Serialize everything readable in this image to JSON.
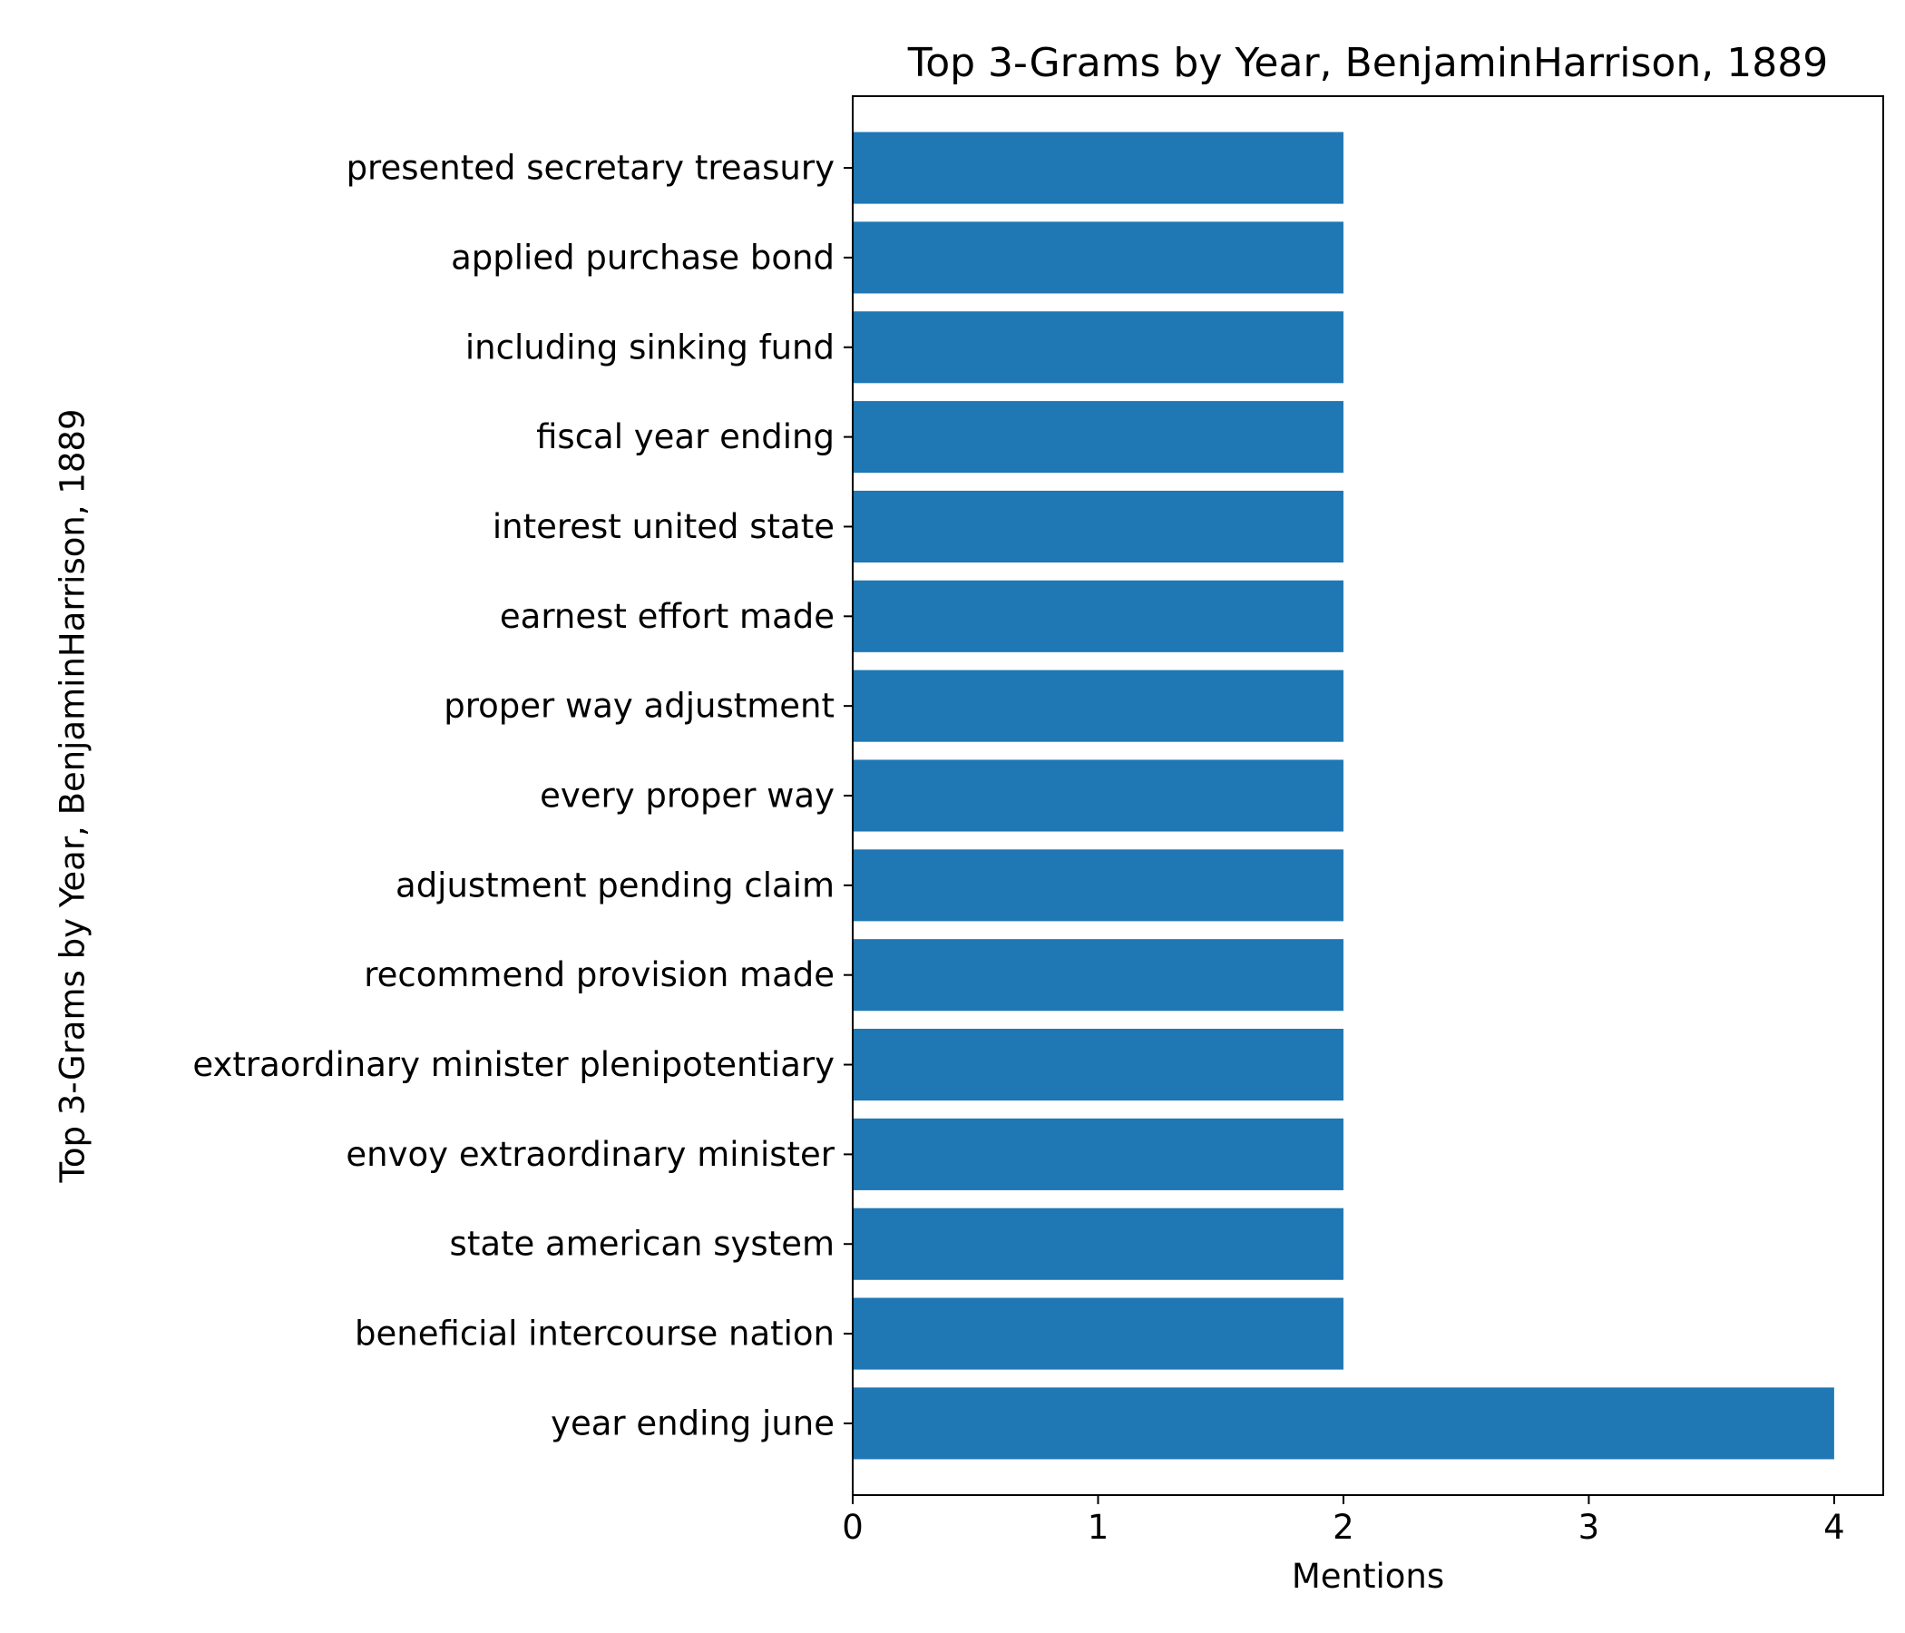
{
  "chart_data": {
    "type": "bar",
    "orientation": "horizontal",
    "title": "Top 3-Grams by Year, BenjaminHarrison, 1889",
    "xlabel": "Mentions",
    "ylabel": "Top 3-Grams by Year, BenjaminHarrison, 1889",
    "xlim": [
      0,
      4.2
    ],
    "xticks": [
      "0",
      "1",
      "2",
      "3",
      "4"
    ],
    "grid": false,
    "legend": "none",
    "bar_color": "#1f77b4",
    "categories": [
      "year ending june",
      "beneficial intercourse nation",
      "state american system",
      "envoy extraordinary minister",
      "extraordinary minister plenipotentiary",
      "recommend provision made",
      "adjustment pending claim",
      "every proper way",
      "proper way adjustment",
      "earnest effort made",
      "interest united state",
      "fiscal year ending",
      "including sinking fund",
      "applied purchase bond",
      "presented secretary treasury"
    ],
    "values": [
      4,
      2,
      2,
      2,
      2,
      2,
      2,
      2,
      2,
      2,
      2,
      2,
      2,
      2,
      2
    ]
  }
}
